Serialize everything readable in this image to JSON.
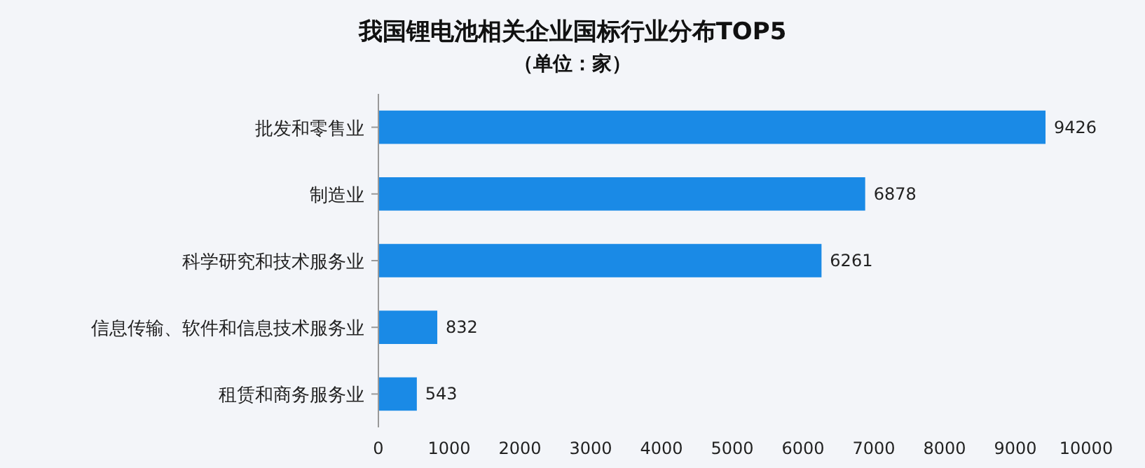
{
  "chart_data": {
    "type": "bar",
    "orientation": "horizontal",
    "title": "我国锂电池相关企业国标行业分布TOP5",
    "subtitle": "（单位：家）",
    "categories": [
      "批发和零售业",
      "制造业",
      "科学研究和技术服务业",
      "信息传输、软件和信息技术服务业",
      "租赁和商务服务业"
    ],
    "values": [
      9426,
      6878,
      6261,
      832,
      543
    ],
    "color": "#1a8ae6",
    "data_labels": true,
    "xlim": [
      0,
      10000
    ],
    "xticks": [
      0,
      1000,
      2000,
      3000,
      4000,
      5000,
      6000,
      7000,
      8000,
      9000,
      10000
    ],
    "grid": false
  }
}
